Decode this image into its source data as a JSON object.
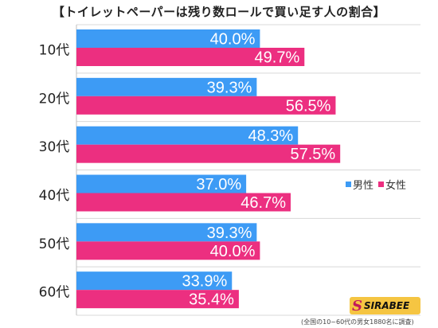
{
  "title": "【トイレットペーパーは残り数ロールで買い足す人の割合】",
  "legend": {
    "male": "男性",
    "female": "女性"
  },
  "colors": {
    "male": "#3d9bf5",
    "female": "#ec2f80",
    "grid": "#d8d8d8",
    "label": "#ffffff"
  },
  "logo": {
    "mark": "S",
    "word": "SIRABEE"
  },
  "footnote": "(全国の10~60代の男女1880名に調査)",
  "chart_data": {
    "type": "bar",
    "orientation": "horizontal",
    "categories": [
      "10代",
      "20代",
      "30代",
      "40代",
      "50代",
      "60代"
    ],
    "series": [
      {
        "name": "男性",
        "values": [
          40.0,
          39.3,
          48.3,
          37.0,
          39.3,
          33.9
        ]
      },
      {
        "name": "女性",
        "values": [
          49.7,
          56.5,
          57.5,
          46.7,
          40.0,
          35.4
        ]
      }
    ],
    "value_suffix": "%",
    "xlim": [
      0,
      75
    ],
    "grid": true,
    "legend_position": "right-middle"
  }
}
